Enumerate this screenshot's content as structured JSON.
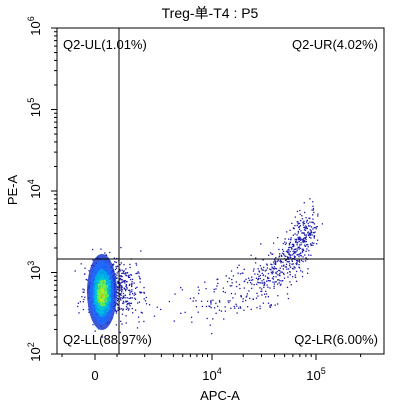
{
  "chart_data": {
    "type": "scatter",
    "title": "Treg-单-T4 : P5",
    "xlabel": "APC-A",
    "ylabel": "PE-A",
    "x_scale": "biexponential",
    "y_scale": "log",
    "x_ticks": [
      {
        "value": 0,
        "base": "0",
        "exp": ""
      },
      {
        "value": 10000,
        "base": "10",
        "exp": "4"
      },
      {
        "value": 100000,
        "base": "10",
        "exp": "5"
      }
    ],
    "y_ticks": [
      {
        "value": 100,
        "base": "10",
        "exp": "2"
      },
      {
        "value": 1000,
        "base": "10",
        "exp": "3"
      },
      {
        "value": 10000,
        "base": "10",
        "exp": "4"
      },
      {
        "value": 100000,
        "base": "10",
        "exp": "5"
      },
      {
        "value": 1000000,
        "base": "10",
        "exp": "6"
      }
    ],
    "ylim": [
      100,
      1000000
    ],
    "gate": {
      "x": 1500,
      "y": 1400
    },
    "quadrants": [
      {
        "id": "UL",
        "label": "Q2-UL(1.01%)",
        "percent": 1.01
      },
      {
        "id": "UR",
        "label": "Q2-UR(4.02%)",
        "percent": 4.02
      },
      {
        "id": "LL",
        "label": "Q2-LL(88.97%)",
        "percent": 88.97
      },
      {
        "id": "LR",
        "label": "Q2-LR(6.00%)",
        "percent": 6.0
      }
    ],
    "colors": {
      "sparse": "#1a1aa8",
      "dense_low": "#1e6cff",
      "dense_mid": "#00c8c8",
      "dense_high": "#e8e800"
    }
  }
}
